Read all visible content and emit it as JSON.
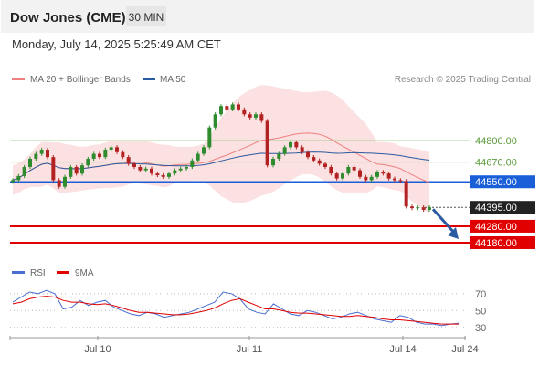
{
  "header": {
    "instrument": "Dow Jones (CME)",
    "timeframe": "30 MIN",
    "timestamp": "Monday, July 14, 2025 5:25:49 AM CET"
  },
  "legend": {
    "items": [
      {
        "label": "MA 20 + Bollinger Bands",
        "color": "#f08080"
      },
      {
        "label": "MA 50",
        "color": "#2a5aa0"
      }
    ],
    "credit": "Research © 2025 Trading Central"
  },
  "rsi_legend": {
    "items": [
      {
        "label": "RSI",
        "color": "#4a6fd0"
      },
      {
        "label": "9MA",
        "color": "#e00000"
      }
    ]
  },
  "colors": {
    "up": "#2e8b2e",
    "down": "#b22222",
    "band": "#f8c8c8",
    "ma20": "#f08080",
    "ma50": "#2a5aa0",
    "blue_level": "#1a5fd8",
    "red_level": "#e00000",
    "green_level": "#90c878",
    "price_badge": "#222222"
  },
  "chart_data": [
    {
      "type": "candlestick",
      "title": "Dow Jones (CME)",
      "timeframe": "30 MIN",
      "x_ticks": [
        "Jul 10",
        "Jul 11",
        "Jul 14",
        "Jul 24"
      ],
      "y_range": [
        44130,
        45100
      ],
      "grid": false,
      "levels": [
        {
          "value": 44800.0,
          "label": "44800.00",
          "kind": "resistance"
        },
        {
          "value": 44670.0,
          "label": "44670.00",
          "kind": "resistance"
        },
        {
          "value": 44550.0,
          "label": "44550.00",
          "kind": "pivot"
        },
        {
          "value": 44395.0,
          "label": "44395.00",
          "kind": "last"
        },
        {
          "value": 44280.0,
          "label": "44280.00",
          "kind": "support"
        },
        {
          "value": 44180.0,
          "label": "44180.00",
          "kind": "support"
        }
      ],
      "close_series": [
        44560,
        44585,
        44640,
        44690,
        44720,
        44745,
        44700,
        44560,
        44520,
        44580,
        44640,
        44600,
        44650,
        44690,
        44720,
        44700,
        44745,
        44760,
        44730,
        44700,
        44660,
        44640,
        44620,
        44630,
        44600,
        44590,
        44580,
        44600,
        44620,
        44630,
        44640,
        44680,
        44720,
        44760,
        44880,
        44960,
        45010,
        44990,
        45020,
        44990,
        44960,
        44940,
        44960,
        44920,
        44650,
        44690,
        44720,
        44760,
        44790,
        44760,
        44730,
        44700,
        44680,
        44660,
        44640,
        44600,
        44570,
        44600,
        44640,
        44620,
        44580,
        44560,
        44580,
        44610,
        44600,
        44570,
        44560,
        44555,
        44400,
        44390,
        44395,
        44380,
        44395
      ],
      "projection": {
        "from": 44395,
        "to": 44180
      }
    },
    {
      "type": "line",
      "title": "RSI",
      "series": [
        {
          "name": "RSI",
          "values": [
            60,
            66,
            72,
            70,
            74,
            70,
            52,
            54,
            62,
            56,
            60,
            62,
            54,
            50,
            46,
            44,
            48,
            46,
            42,
            44,
            46,
            48,
            52,
            56,
            60,
            72,
            70,
            64,
            52,
            48,
            46,
            58,
            52,
            46,
            44,
            50,
            48,
            44,
            40,
            42,
            46,
            48,
            44,
            40,
            38,
            36,
            44,
            42,
            36,
            34,
            34,
            32,
            34,
            35
          ]
        },
        {
          "name": "9MA",
          "values": [
            58,
            60,
            64,
            66,
            67,
            66,
            62,
            60,
            60,
            58,
            57,
            58,
            56,
            53,
            50,
            48,
            48,
            47,
            46,
            45,
            45,
            46,
            48,
            50,
            53,
            58,
            62,
            64,
            60,
            56,
            52,
            52,
            50,
            48,
            47,
            47,
            46,
            45,
            44,
            43,
            43,
            44,
            43,
            42,
            40,
            39,
            39,
            38,
            37,
            36,
            35,
            34,
            34,
            34
          ]
        }
      ],
      "y_ticks": [
        "70",
        "50",
        "30"
      ],
      "y_range": [
        20,
        85
      ]
    }
  ]
}
